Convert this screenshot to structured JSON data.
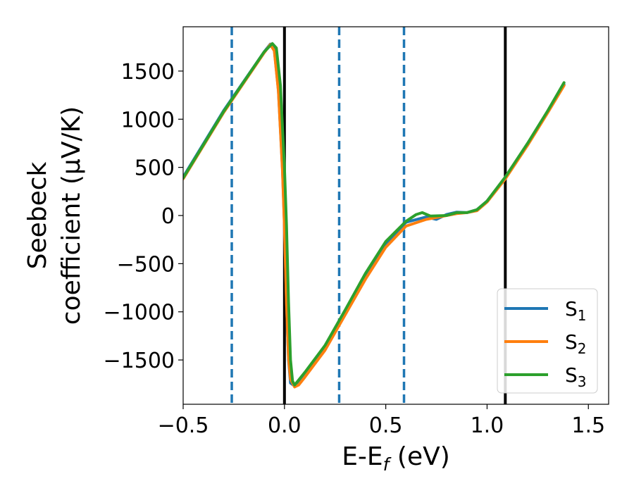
{
  "chart_data": {
    "type": "line",
    "title": "",
    "xlabel": "E-E",
    "xlabel_sub": "f",
    "xlabel_unit": " (eV)",
    "ylabel_line1": "Seebeck",
    "ylabel_line2": "coefficient  (μV/K)",
    "xlim": [
      -0.5,
      1.6
    ],
    "ylim": [
      -1960,
      1960
    ],
    "xticks": [
      -0.5,
      0.0,
      0.5,
      1.0,
      1.5
    ],
    "xtick_labels": [
      "−0.5",
      "0.0",
      "0.5",
      "1.0",
      "1.5"
    ],
    "yticks": [
      -1500,
      -1000,
      -500,
      0,
      500,
      1000,
      1500
    ],
    "ytick_labels": [
      "−1500",
      "−1000",
      "−500",
      "0",
      "500",
      "1000",
      "1500"
    ],
    "grid": false,
    "legend": {
      "placement": "bottom-right",
      "entries": [
        {
          "base": "S",
          "sub": "1",
          "color": "#1f77b4"
        },
        {
          "base": "S",
          "sub": "2",
          "color": "#ff7f0e"
        },
        {
          "base": "S",
          "sub": "3",
          "color": "#2ca02c"
        }
      ]
    },
    "vlines": [
      {
        "x": -0.26,
        "style": "dashed",
        "color": "#1f77b4"
      },
      {
        "x": 0.0,
        "style": "solid",
        "color": "#000000"
      },
      {
        "x": 0.27,
        "style": "dashed",
        "color": "#1f77b4"
      },
      {
        "x": 0.59,
        "style": "dashed",
        "color": "#1f77b4"
      },
      {
        "x": 1.09,
        "style": "solid",
        "color": "#000000"
      }
    ],
    "series": [
      {
        "name": "S1",
        "color": "#1f77b4",
        "points": [
          [
            -0.5,
            400
          ],
          [
            -0.3,
            1090
          ],
          [
            -0.1,
            1700
          ],
          [
            -0.07,
            1780
          ],
          [
            -0.05,
            1720
          ],
          [
            -0.03,
            1300
          ],
          [
            -0.01,
            500
          ],
          [
            0.0,
            -100
          ],
          [
            0.01,
            -900
          ],
          [
            0.02,
            -1500
          ],
          [
            0.03,
            -1740
          ],
          [
            0.05,
            -1770
          ],
          [
            0.1,
            -1640
          ],
          [
            0.2,
            -1370
          ],
          [
            0.3,
            -1000
          ],
          [
            0.4,
            -620
          ],
          [
            0.5,
            -290
          ],
          [
            0.6,
            -70
          ],
          [
            0.7,
            -15
          ],
          [
            0.75,
            -40
          ],
          [
            0.8,
            10
          ],
          [
            0.85,
            35
          ],
          [
            0.9,
            30
          ],
          [
            0.95,
            60
          ],
          [
            1.0,
            150
          ],
          [
            1.09,
            390
          ],
          [
            1.2,
            740
          ],
          [
            1.3,
            1080
          ],
          [
            1.38,
            1360
          ]
        ]
      },
      {
        "name": "S2",
        "color": "#ff7f0e",
        "points": [
          [
            -0.5,
            380
          ],
          [
            -0.3,
            1070
          ],
          [
            -0.1,
            1690
          ],
          [
            -0.07,
            1775
          ],
          [
            -0.05,
            1710
          ],
          [
            -0.03,
            1290
          ],
          [
            -0.01,
            480
          ],
          [
            0.0,
            -120
          ],
          [
            0.01,
            -920
          ],
          [
            0.02,
            -1480
          ],
          [
            0.03,
            -1700
          ],
          [
            0.05,
            -1780
          ],
          [
            0.07,
            -1760
          ],
          [
            0.1,
            -1680
          ],
          [
            0.2,
            -1400
          ],
          [
            0.3,
            -1030
          ],
          [
            0.4,
            -660
          ],
          [
            0.5,
            -330
          ],
          [
            0.6,
            -110
          ],
          [
            0.7,
            -40
          ],
          [
            0.8,
            0
          ],
          [
            0.85,
            20
          ],
          [
            0.9,
            30
          ],
          [
            0.95,
            50
          ],
          [
            1.0,
            140
          ],
          [
            1.09,
            380
          ],
          [
            1.2,
            730
          ],
          [
            1.3,
            1070
          ],
          [
            1.38,
            1350
          ]
        ]
      },
      {
        "name": "S3",
        "color": "#2ca02c",
        "points": [
          [
            -0.5,
            390
          ],
          [
            -0.3,
            1080
          ],
          [
            -0.1,
            1700
          ],
          [
            -0.06,
            1785
          ],
          [
            -0.04,
            1740
          ],
          [
            -0.02,
            1350
          ],
          [
            0.0,
            500
          ],
          [
            0.01,
            -100
          ],
          [
            0.02,
            -900
          ],
          [
            0.03,
            -1500
          ],
          [
            0.04,
            -1720
          ],
          [
            0.05,
            -1760
          ],
          [
            0.1,
            -1630
          ],
          [
            0.2,
            -1350
          ],
          [
            0.3,
            -980
          ],
          [
            0.4,
            -600
          ],
          [
            0.5,
            -270
          ],
          [
            0.6,
            -60
          ],
          [
            0.65,
            10
          ],
          [
            0.68,
            30
          ],
          [
            0.72,
            -5
          ],
          [
            0.8,
            0
          ],
          [
            0.85,
            30
          ],
          [
            0.9,
            30
          ],
          [
            0.95,
            60
          ],
          [
            1.0,
            150
          ],
          [
            1.09,
            400
          ],
          [
            1.2,
            750
          ],
          [
            1.3,
            1090
          ],
          [
            1.38,
            1380
          ]
        ]
      }
    ]
  }
}
